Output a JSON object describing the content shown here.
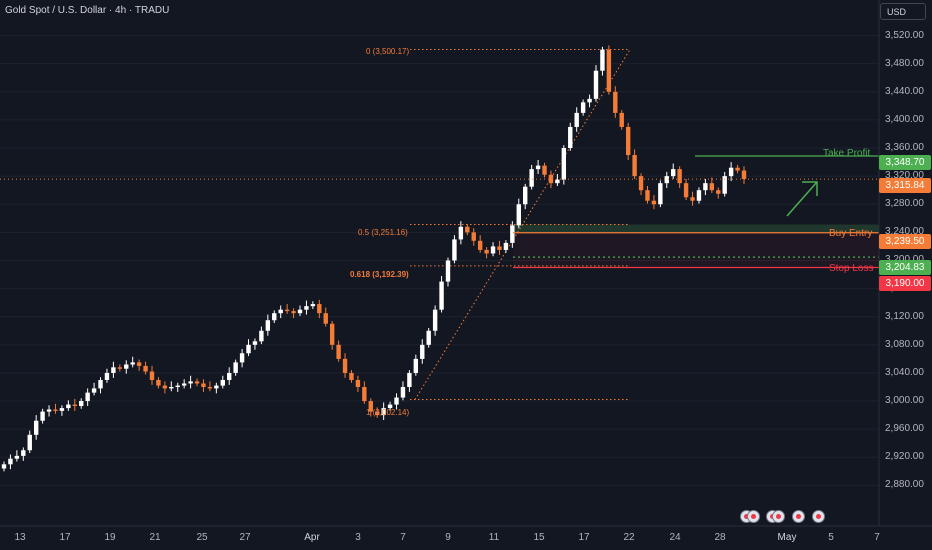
{
  "header": {
    "title": "Gold Spot / U.S. Dollar · 4h · TRADU",
    "currency_button": "USD"
  },
  "chart_data": {
    "type": "candlestick",
    "symbol": "Gold Spot / U.S. Dollar",
    "timeframe": "4h",
    "ylim": [
      2845,
      3545
    ],
    "y_ticks": [
      2880,
      2920,
      2960,
      3000,
      3040,
      3080,
      3120,
      3160,
      3200,
      3240,
      3280,
      3320,
      3360,
      3400,
      3440,
      3480,
      3520
    ],
    "y_tick_labels": [
      "2,880.00",
      "2,920.00",
      "2,960.00",
      "3,000.00",
      "3,040.00",
      "3,080.00",
      "3,120.00",
      "3,160.00",
      "3,200.00",
      "3,240.00",
      "3,280.00",
      "3,320.00",
      "3,360.00",
      "3,400.00",
      "3,440.00",
      "3,480.00",
      "3,520.00"
    ],
    "x_labels": [
      "13",
      "17",
      "19",
      "21",
      "25",
      "27",
      "Apr",
      "3",
      "7",
      "9",
      "11",
      "15",
      "17",
      "22",
      "24",
      "28",
      "May",
      "5",
      "7"
    ],
    "closes": [
      2910,
      2918,
      2922,
      2930,
      2952,
      2972,
      2985,
      2988,
      2986,
      2990,
      2995,
      2993,
      3000,
      3012,
      3018,
      3030,
      3040,
      3048,
      3046,
      3052,
      3055,
      3050,
      3042,
      3030,
      3022,
      3018,
      3020,
      3022,
      3025,
      3028,
      3025,
      3020,
      3018,
      3022,
      3030,
      3040,
      3055,
      3068,
      3080,
      3085,
      3100,
      3115,
      3125,
      3130,
      3128,
      3125,
      3130,
      3135,
      3138,
      3125,
      3110,
      3080,
      3060,
      3040,
      3030,
      3020,
      3000,
      2985,
      2980,
      2990,
      2995,
      3005,
      3020,
      3040,
      3060,
      3080,
      3100,
      3130,
      3170,
      3200,
      3230,
      3248,
      3240,
      3228,
      3215,
      3210,
      3220,
      3215,
      3225,
      3250,
      3280,
      3305,
      3330,
      3335,
      3322,
      3310,
      3315,
      3360,
      3390,
      3410,
      3425,
      3430,
      3470,
      3500,
      3440,
      3410,
      3390,
      3350,
      3320,
      3300,
      3285,
      3280,
      3310,
      3320,
      3330,
      3310,
      3290,
      3285,
      3300,
      3310,
      3300,
      3295,
      3320,
      3332,
      3328,
      3316
    ],
    "fib_levels": [
      {
        "label": "0 (3,500.17)",
        "value": 3500.17
      },
      {
        "label": "0.5 (3,251.16)",
        "value": 3251.16
      },
      {
        "label": "0.618 (3,192.39)",
        "value": 3192.39
      },
      {
        "label": "1 (3,002.14)",
        "value": 3002.14
      }
    ],
    "levels": {
      "take_profit": {
        "label": "Take Profit",
        "value": 3348.7,
        "price_label": "3,348.70",
        "color": "#4caf50"
      },
      "buy_entry": {
        "label": "Buy Entry",
        "value": 3239.5,
        "price_label": "3,239.50",
        "color": "#f57c36"
      },
      "stop_loss": {
        "label": "Stop Loss",
        "value": 3190.0,
        "price_label": "3,190.00",
        "color": "#f23645"
      },
      "bid": {
        "value": 3204.83,
        "price_label": "3,204.83",
        "color": "#4caf50"
      },
      "last_price": {
        "value": 3315.84,
        "price_label": "3,315.84",
        "color": "#f57c36"
      }
    },
    "colors": {
      "up": "#ffffff",
      "down": "#f57c36",
      "background": "#131722",
      "grid": "#1e222d"
    }
  }
}
